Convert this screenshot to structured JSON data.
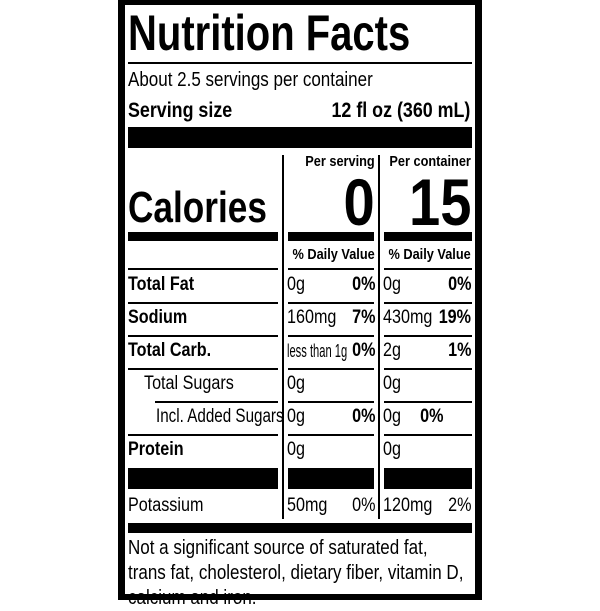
{
  "title": "Nutrition Facts",
  "servings": "About 2.5 servings per container",
  "serving_size": {
    "label": "Serving size",
    "value": "12 fl oz (360 mL)"
  },
  "columns": [
    {
      "header": "Per serving",
      "calories": "0",
      "dv_header": "% Daily Value"
    },
    {
      "header": "Per container",
      "calories": "15",
      "dv_header": "% Daily Value"
    }
  ],
  "calories_label": "Calories",
  "rows": [
    {
      "label": "Total Fat",
      "bold": true,
      "indent": 0,
      "values": [
        {
          "amount": "0g",
          "dv": "0%"
        },
        {
          "amount": "0g",
          "dv": "0%"
        }
      ]
    },
    {
      "label": "Sodium",
      "bold": true,
      "indent": 0,
      "values": [
        {
          "amount": "160mg",
          "dv": "7%"
        },
        {
          "amount": "430mg",
          "dv": "19%"
        }
      ]
    },
    {
      "label": "Total Carb.",
      "bold": true,
      "indent": 0,
      "values": [
        {
          "amount": "less than 1g",
          "dv": "0%"
        },
        {
          "amount": "2g",
          "dv": "1%"
        }
      ]
    },
    {
      "label": "Total Sugars",
      "bold": false,
      "indent": 1,
      "values": [
        {
          "amount": "0g",
          "dv": ""
        },
        {
          "amount": "0g",
          "dv": ""
        }
      ]
    },
    {
      "label": "Incl. Added Sugars",
      "bold": false,
      "indent": 2,
      "values": [
        {
          "amount": "0g",
          "dv": "0%"
        },
        {
          "amount": "0g",
          "dv": "0%"
        }
      ]
    },
    {
      "label": "Protein",
      "bold": true,
      "indent": 0,
      "values": [
        {
          "amount": "0g",
          "dv": ""
        },
        {
          "amount": "0g",
          "dv": ""
        }
      ]
    }
  ],
  "potassium": {
    "label": "Potassium",
    "values": [
      {
        "amount": "50mg",
        "dv": "0%"
      },
      {
        "amount": "120mg",
        "dv": "2%"
      }
    ]
  },
  "footnote": "Not a significant source of saturated fat, trans fat, cholesterol, dietary fiber, vitamin D, calcium and iron."
}
